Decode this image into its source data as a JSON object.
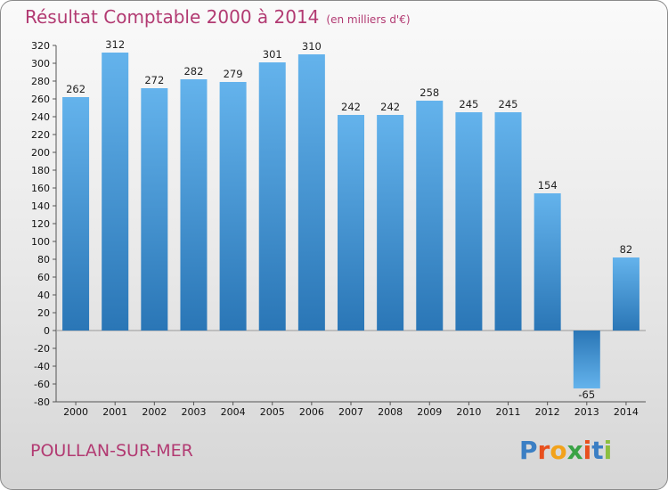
{
  "header": {
    "title": "Résultat Comptable 2000 à 2014",
    "subtitle": "(en milliers d'€)"
  },
  "footer": {
    "location": "POULLAN-SUR-MER"
  },
  "logo": {
    "text": "Proxiti",
    "letter_colors": [
      "#3b7fc4",
      "#e8501e",
      "#f2a21b",
      "#3aa346",
      "#e8501e",
      "#3b7fc4",
      "#8cbf3f"
    ]
  },
  "colors": {
    "title": "#b23a72",
    "bar_light": "#5eaee9",
    "bar_dark": "#2a78b8"
  },
  "chart_data": {
    "type": "bar",
    "categories": [
      "2000",
      "2001",
      "2002",
      "2003",
      "2004",
      "2005",
      "2006",
      "2007",
      "2008",
      "2009",
      "2010",
      "2011",
      "2012",
      "2013",
      "2014"
    ],
    "values": [
      262,
      312,
      272,
      282,
      279,
      301,
      310,
      242,
      242,
      258,
      245,
      245,
      154,
      -65,
      82
    ],
    "ylim": [
      -80,
      320
    ],
    "ytick_step": 20,
    "grid": false
  }
}
